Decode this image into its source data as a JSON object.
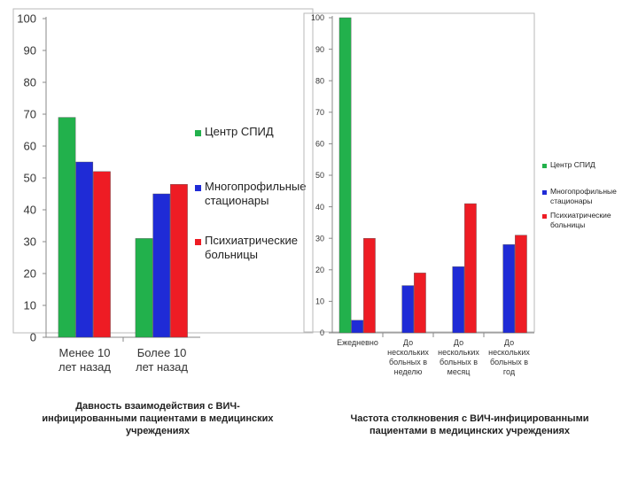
{
  "chart_data": [
    {
      "type": "bar",
      "categories": [
        [
          "Менее 10",
          "лет назад"
        ],
        [
          "Более 10",
          "лет назад"
        ]
      ],
      "series": [
        {
          "name": "Центр СПИД",
          "color": "#22b14c",
          "values": [
            69,
            31
          ]
        },
        {
          "name": [
            "Многопрофильные",
            "стационары"
          ],
          "color": "#1f2bd6",
          "values": [
            55,
            45
          ]
        },
        {
          "name": [
            "Психиатрические",
            "больницы"
          ],
          "color": "#ee1c24",
          "values": [
            52,
            48
          ]
        }
      ],
      "ylim": [
        0,
        100
      ],
      "yticks": [
        "0",
        "10",
        "20",
        "30",
        "40",
        "50",
        "60",
        "70",
        "80",
        "90",
        "100"
      ],
      "legend_position": "right",
      "caption": [
        "Давность взаимодействия с ВИЧ-",
        "инфицированными пациентами в медицинских",
        "учреждениях"
      ]
    },
    {
      "type": "bar",
      "categories": [
        [
          "Ежедневно"
        ],
        [
          "До",
          "нескольких",
          "больных в",
          "неделю"
        ],
        [
          "До",
          "нескольких",
          "больных в",
          "месяц"
        ],
        [
          "До",
          "нескольких",
          "больных в",
          "год"
        ]
      ],
      "series": [
        {
          "name": "Центр СПИД",
          "color": "#22b14c",
          "values": [
            100,
            0,
            0,
            0
          ]
        },
        {
          "name": [
            "Многопрофильные",
            "стационары"
          ],
          "color": "#1f2bd6",
          "values": [
            4,
            15,
            21,
            28
          ]
        },
        {
          "name": [
            "Психиатрические",
            "больницы"
          ],
          "color": "#ee1c24",
          "values": [
            30,
            19,
            41,
            31
          ]
        }
      ],
      "ylim": [
        0,
        100
      ],
      "yticks": [
        "0",
        "10",
        "20",
        "30",
        "40",
        "50",
        "60",
        "70",
        "80",
        "90",
        "100"
      ],
      "legend_position": "right",
      "caption": [
        "Частота столкновения с ВИЧ-инфицированными",
        "пациентами в медицинских учреждениях"
      ]
    }
  ]
}
